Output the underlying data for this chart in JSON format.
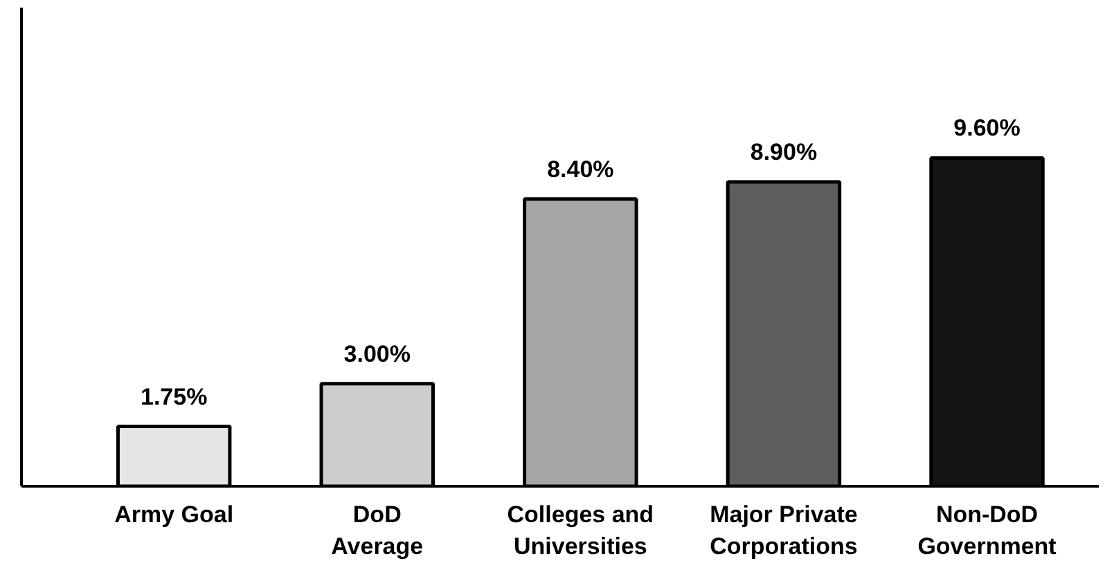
{
  "chart_data": {
    "type": "bar",
    "categories": [
      "Army Goal",
      "DoD\nAverage",
      "Colleges and\nUniversities",
      "Major Private\nCorporations",
      "Non-DoD\nGovernment"
    ],
    "values": [
      1.75,
      3.0,
      8.4,
      8.9,
      9.6
    ],
    "colors": [
      "#e6e6e6",
      "#cdcdcd",
      "#a6a6a6",
      "#5e5e5e",
      "#141414"
    ],
    "value_labels": [
      "1.75%",
      "3.00%",
      "8.40%",
      "8.90%",
      "9.60%"
    ],
    "ylim": [
      0,
      14
    ],
    "grid": false
  }
}
